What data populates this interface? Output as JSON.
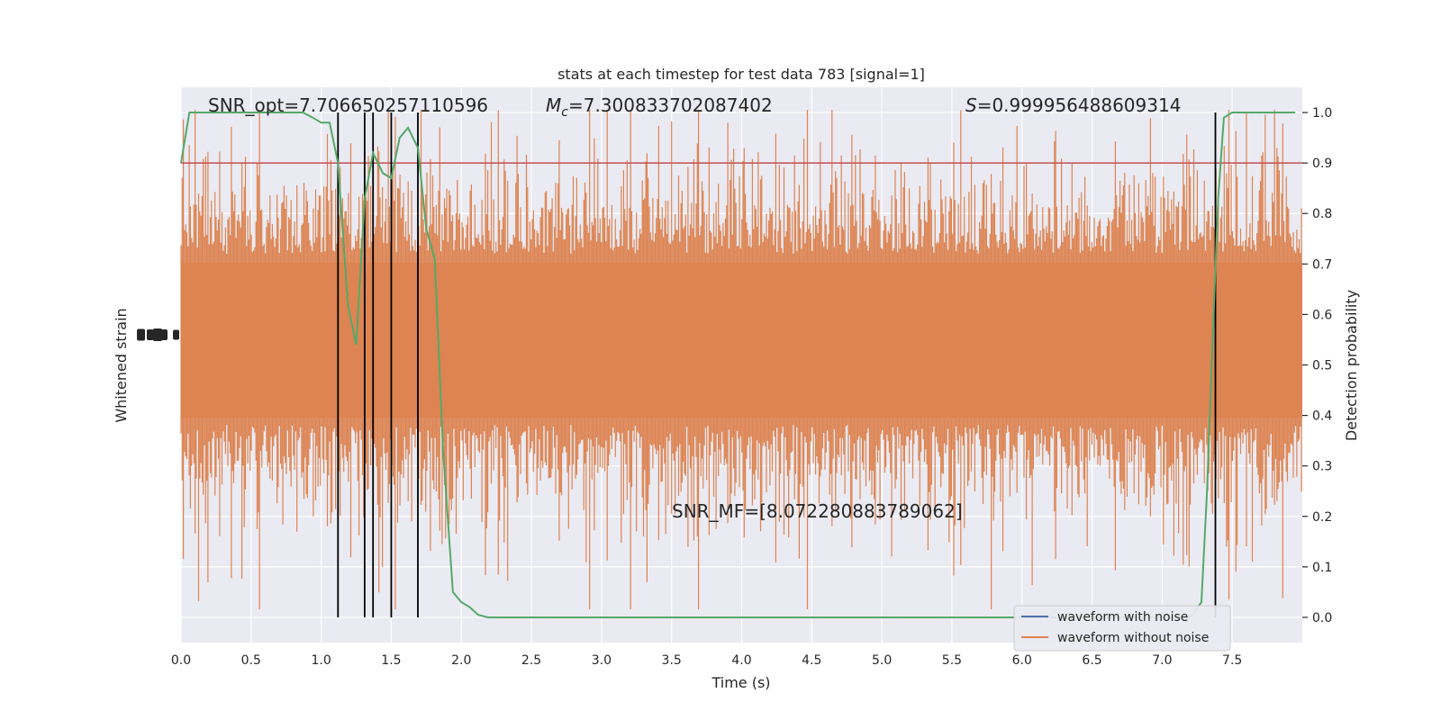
{
  "chart_data": {
    "type": "line",
    "title": "stats at each timestep for test data 783 [signal=1]",
    "xlabel": "Time (s)",
    "ylabel_left": "Whitened strain",
    "ylabel_right": "Detection probability",
    "xlim": [
      0.0,
      8.0
    ],
    "ylim_right": [
      -0.05,
      1.05
    ],
    "x_ticks": [
      0.0,
      0.5,
      1.0,
      1.5,
      2.0,
      2.5,
      3.0,
      3.5,
      4.0,
      4.5,
      5.0,
      5.5,
      6.0,
      6.5,
      7.0,
      7.5
    ],
    "x_tick_labels": [
      "0.0",
      "0.5",
      "1.0",
      "1.5",
      "2.0",
      "2.5",
      "3.0",
      "3.5",
      "4.0",
      "4.5",
      "5.0",
      "5.5",
      "6.0",
      "6.5",
      "7.0",
      "7.5"
    ],
    "y_ticks_right": [
      0.0,
      0.1,
      0.2,
      0.3,
      0.4,
      0.5,
      0.6,
      0.7,
      0.8,
      0.9,
      1.0
    ],
    "y_tick_labels_right": [
      "0.0",
      "0.1",
      "0.2",
      "0.3",
      "0.4",
      "0.5",
      "0.6",
      "0.7",
      "0.8",
      "0.9",
      "1.0"
    ],
    "grid": true,
    "legend_position": "lower-right",
    "annotations": {
      "snr_opt": "SNR_opt=7.706650257110596",
      "mc_symbol": "M",
      "mc_subscript": "c",
      "mc_value": "=7.300833702087402",
      "s_symbol": "S",
      "s_value": "=0.999956488609314",
      "snr_mf": "SNR_MF=[8.072280883789062]"
    },
    "threshold": {
      "value": 0.9,
      "color": "#c44e52"
    },
    "event_lines_x": [
      1.12,
      1.31,
      1.37,
      1.5,
      1.69,
      7.38
    ],
    "series": [
      {
        "name": "waveform with noise",
        "color": "#4c72b0",
        "kind": "strain"
      },
      {
        "name": "waveform without noise",
        "color": "#dd8452",
        "kind": "strain"
      },
      {
        "kind": "probability",
        "color": "#55a868",
        "x": [
          0.0,
          0.06,
          0.12,
          0.19,
          0.25,
          0.31,
          0.37,
          0.44,
          0.5,
          0.56,
          0.62,
          0.69,
          0.75,
          0.81,
          0.87,
          0.94,
          1.0,
          1.06,
          1.12,
          1.19,
          1.25,
          1.31,
          1.37,
          1.44,
          1.5,
          1.56,
          1.62,
          1.69,
          1.75,
          1.81,
          1.87,
          1.94,
          2.0,
          2.06,
          2.12,
          2.19,
          2.25,
          2.4,
          2.6,
          2.8,
          3.0,
          3.2,
          3.4,
          3.6,
          3.8,
          4.0,
          4.2,
          4.4,
          4.6,
          4.8,
          5.0,
          5.2,
          5.4,
          5.6,
          5.8,
          6.0,
          6.2,
          6.4,
          6.6,
          6.8,
          7.0,
          7.2,
          7.28,
          7.32,
          7.36,
          7.4,
          7.44,
          7.5,
          7.6,
          7.8,
          7.95
        ],
        "y": [
          0.9,
          1.0,
          1.0,
          1.0,
          1.0,
          1.0,
          1.0,
          1.0,
          1.0,
          1.0,
          1.0,
          1.0,
          1.0,
          1.0,
          1.0,
          0.99,
          0.98,
          0.98,
          0.9,
          0.62,
          0.54,
          0.83,
          0.92,
          0.88,
          0.87,
          0.95,
          0.97,
          0.93,
          0.77,
          0.71,
          0.33,
          0.05,
          0.03,
          0.02,
          0.005,
          0.0,
          0.0,
          0.0,
          0.0,
          0.0,
          0.0,
          0.0,
          0.0,
          0.0,
          0.0,
          0.0,
          0.0,
          0.0,
          0.0,
          0.0,
          0.0,
          0.0,
          0.0,
          0.0,
          0.0,
          0.0,
          0.0,
          0.0,
          0.0,
          0.0,
          0.0,
          0.0,
          0.03,
          0.25,
          0.55,
          0.83,
          0.99,
          1.0,
          1.0,
          1.0,
          1.0
        ]
      }
    ]
  }
}
